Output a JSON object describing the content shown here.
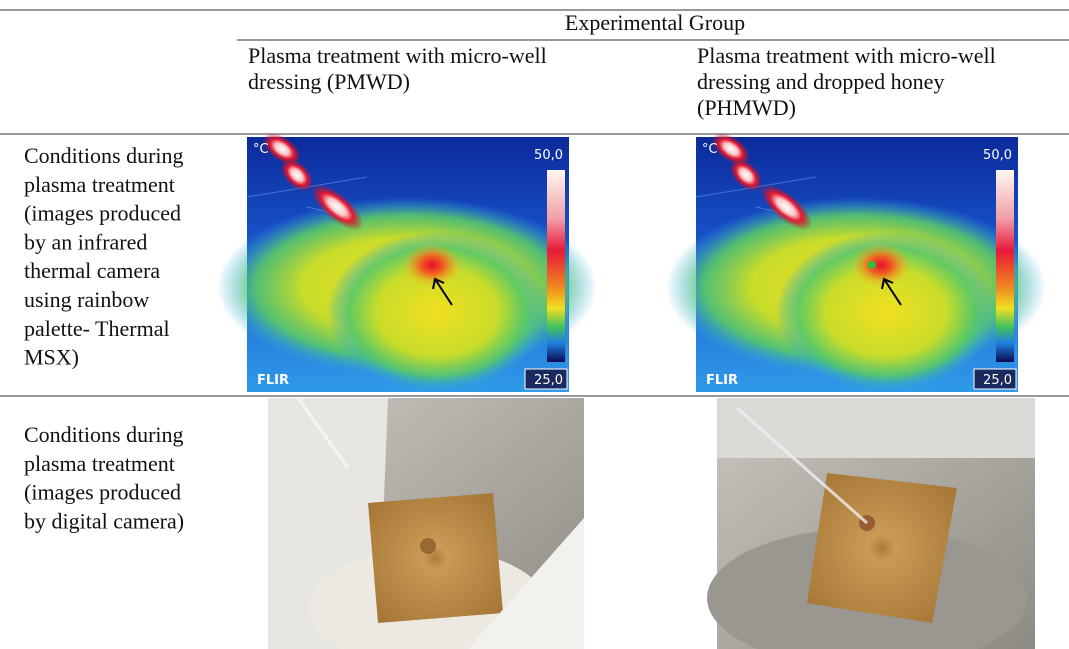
{
  "table": {
    "group_header": "Experimental Group",
    "columns": [
      {
        "lines": [
          "Plasma treatment with micro-well",
          "dressing (PMWD)"
        ]
      },
      {
        "lines": [
          "Plasma treatment with micro-well",
          "dressing and dropped honey",
          "(PHMWD)"
        ]
      }
    ],
    "rows": [
      {
        "label": [
          "Conditions during",
          "plasma treatment",
          "(images produced",
          "by an infrared",
          "thermal camera",
          "using rainbow",
          "palette- Thermal",
          "MSX)"
        ],
        "images": [
          {
            "unit": "°C",
            "max": "50,0",
            "min": "25,0",
            "brand": "FLIR"
          },
          {
            "unit": "°C",
            "max": "50,0",
            "min": "25,0",
            "brand": "FLIR"
          }
        ]
      },
      {
        "label": [
          "Conditions during",
          "plasma treatment",
          "(images produced",
          "by digital camera)"
        ]
      }
    ]
  }
}
